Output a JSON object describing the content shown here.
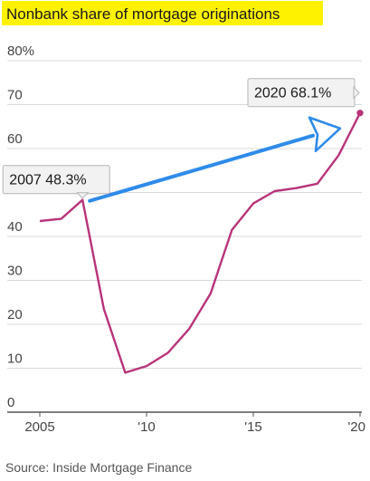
{
  "chart_data": {
    "type": "line",
    "title": "Nonbank share of mortgage originations",
    "source": "Source: Inside Mortgage Finance",
    "xlabel": "",
    "ylabel": "",
    "x": [
      2005,
      2006,
      2007,
      2008,
      2009,
      2010,
      2011,
      2012,
      2013,
      2014,
      2015,
      2016,
      2017,
      2018,
      2019,
      2020
    ],
    "series": [
      {
        "values": [
          43.5,
          44.0,
          48.3,
          23.5,
          9.0,
          10.5,
          13.5,
          19.0,
          27.0,
          41.5,
          47.5,
          50.3,
          51.0,
          52.0,
          58.5,
          68.1
        ]
      }
    ],
    "ylim": [
      0,
      80
    ],
    "xlim": [
      2005,
      2020
    ],
    "y_ticks": [
      {
        "value": 0,
        "label": "0"
      },
      {
        "value": 10,
        "label": "10"
      },
      {
        "value": 20,
        "label": "20"
      },
      {
        "value": 30,
        "label": "30"
      },
      {
        "value": 40,
        "label": "40"
      },
      {
        "value": 50,
        "label": "50"
      },
      {
        "value": 60,
        "label": "60"
      },
      {
        "value": 70,
        "label": "70"
      },
      {
        "value": 80,
        "label": "80%"
      }
    ],
    "x_ticks": [
      {
        "value": 2005,
        "label": "2005"
      },
      {
        "value": 2010,
        "label": "'10"
      },
      {
        "value": 2015,
        "label": "'15"
      },
      {
        "value": 2020,
        "label": "'20"
      }
    ],
    "annotations": [
      {
        "x": 2007,
        "y": 48.3,
        "label": "2007  48.3%"
      },
      {
        "x": 2020,
        "y": 68.1,
        "label": "2020  68.1%"
      }
    ],
    "grid": true,
    "colors": {
      "line": "#b8337a",
      "title_highlight": "#fff200",
      "arrow": "#2f8bea"
    }
  }
}
